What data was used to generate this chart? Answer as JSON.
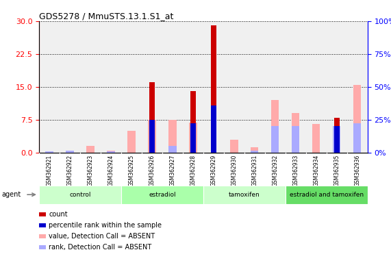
{
  "title": "GDS5278 / MmuSTS.13.1.S1_at",
  "samples": [
    "GSM362921",
    "GSM362922",
    "GSM362923",
    "GSM362924",
    "GSM362925",
    "GSM362926",
    "GSM362927",
    "GSM362928",
    "GSM362929",
    "GSM362930",
    "GSM362931",
    "GSM362932",
    "GSM362933",
    "GSM362934",
    "GSM362935",
    "GSM362936"
  ],
  "count": [
    0,
    0,
    0,
    0,
    0,
    16,
    0,
    14,
    29,
    0,
    0,
    0,
    0,
    0,
    8,
    0
  ],
  "percentile_rank_pct": [
    0,
    0,
    0,
    0,
    0,
    25,
    0,
    22,
    36,
    0,
    0,
    0,
    0,
    0,
    20,
    0
  ],
  "value_absent": [
    0,
    0.5,
    1.5,
    0.4,
    5,
    7.5,
    7.5,
    6.8,
    0,
    3,
    1.2,
    12,
    9,
    6.5,
    0,
    15.5
  ],
  "rank_absent_pct": [
    1,
    1.5,
    0,
    1,
    0,
    0,
    5,
    0,
    0,
    0,
    1.5,
    20,
    20,
    0,
    20,
    22
  ],
  "groups": [
    {
      "label": "control",
      "start": 0,
      "end": 3,
      "color": "#ccffcc"
    },
    {
      "label": "estradiol",
      "start": 4,
      "end": 7,
      "color": "#aaffaa"
    },
    {
      "label": "tamoxifen",
      "start": 8,
      "end": 11,
      "color": "#ccffcc"
    },
    {
      "label": "estradiol and tamoxifen",
      "start": 12,
      "end": 15,
      "color": "#66dd66"
    }
  ],
  "ylim_left": [
    0,
    30
  ],
  "ylim_right": [
    0,
    100
  ],
  "yticks_left": [
    0,
    7.5,
    15,
    22.5,
    30
  ],
  "yticks_right": [
    0,
    25,
    50,
    75,
    100
  ],
  "color_count": "#cc0000",
  "color_rank": "#0000cc",
  "color_value_absent": "#ffaaaa",
  "color_rank_absent": "#aaaaff",
  "bar_width": 0.25,
  "background_plot": "#f0f0f0",
  "background_label": "#cccccc"
}
